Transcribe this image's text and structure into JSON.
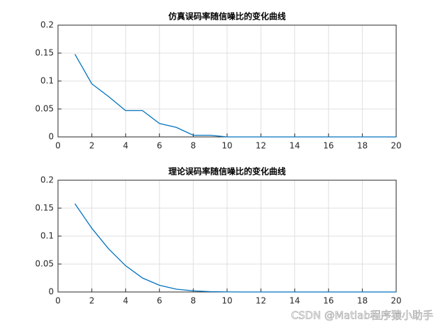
{
  "chart_data": [
    {
      "type": "line",
      "title": "仿真误码率随信噪比的变化曲线",
      "x": [
        1,
        2,
        3,
        4,
        5,
        6,
        7,
        8,
        9,
        10,
        11,
        12,
        13,
        14,
        15,
        16,
        17,
        18,
        19,
        20
      ],
      "series": [
        {
          "color": "#0072bd",
          "values": [
            0.148,
            0.095,
            0.072,
            0.047,
            0.047,
            0.024,
            0.017,
            0.003,
            0.003,
            0,
            0,
            0,
            0,
            0,
            0,
            0,
            0,
            0,
            0,
            0
          ]
        }
      ],
      "xlim": [
        0,
        20
      ],
      "xticks": [
        0,
        2,
        4,
        6,
        8,
        10,
        12,
        14,
        16,
        18,
        20
      ],
      "ylim": [
        0,
        0.2
      ],
      "yticks": [
        0,
        0.05,
        0.1,
        0.15,
        0.2
      ],
      "grid": true
    },
    {
      "type": "line",
      "title": "理论误码率随信噪比的变化曲线",
      "x": [
        1,
        2,
        3,
        4,
        5,
        6,
        7,
        8,
        9,
        10,
        11,
        12,
        13,
        14,
        15,
        16,
        17,
        18,
        19,
        20
      ],
      "series": [
        {
          "color": "#0072bd",
          "values": [
            0.158,
            0.114,
            0.077,
            0.047,
            0.025,
            0.012,
            0.005,
            0.002,
            0.0006,
            0.0002,
            0,
            0,
            0,
            0,
            0,
            0,
            0,
            0,
            0,
            0
          ]
        }
      ],
      "xlim": [
        0,
        20
      ],
      "xticks": [
        0,
        2,
        4,
        6,
        8,
        10,
        12,
        14,
        16,
        18,
        20
      ],
      "ylim": [
        0,
        0.2
      ],
      "yticks": [
        0,
        0.05,
        0.1,
        0.15,
        0.2
      ],
      "grid": true
    }
  ],
  "watermark": "CSDN @Matlab程序猿小助手"
}
